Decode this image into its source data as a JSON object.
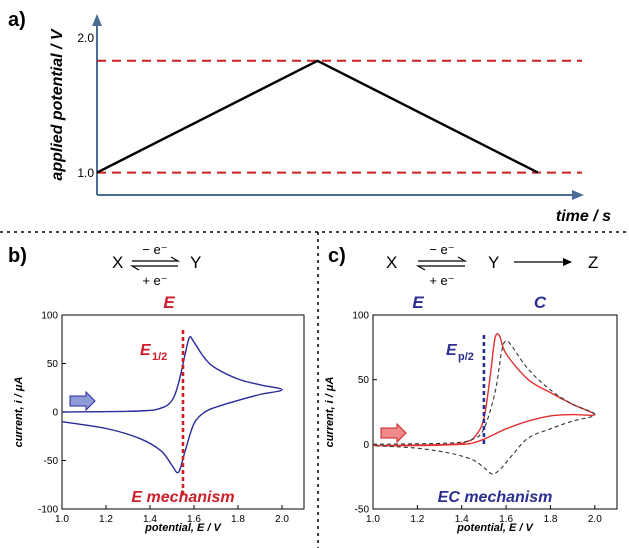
{
  "colors": {
    "axis_blue": "#4a6d96",
    "ramp_black": "#000000",
    "dash_red": "#cc2020",
    "cv_blue": "#2a2a9a",
    "cv_red": "#e03030",
    "dash_gray": "#333333",
    "mech_red": "#cc1f2a",
    "mech_blue": "#2b2f8e",
    "arrow_blue_fill": "#8e9bd8",
    "arrow_red_fill": "#f08a8a"
  },
  "panels": {
    "a": {
      "label": "a)"
    },
    "b": {
      "label": "b)",
      "scheme": {
        "left": "X",
        "right": "Y",
        "over": "− e⁻",
        "under": "+ e⁻"
      },
      "step_E": "E",
      "marker_main": "E",
      "marker_sub": "1/2",
      "mechanism": "E mechanism",
      "arrow_icon": "right-arrow-icon"
    },
    "c": {
      "label": "c)",
      "scheme": {
        "left": "X",
        "mid": "Y",
        "right": "Z",
        "over": "− e⁻",
        "under": "+ e⁻"
      },
      "step_E": "E",
      "step_C": "C",
      "marker_main": "E",
      "marker_sub": "p/2",
      "mechanism": "EC mechanism",
      "arrow_icon": "right-arrow-icon"
    }
  },
  "chart_data": [
    {
      "panel": "a",
      "type": "line",
      "ylabel": "applied potential / V",
      "xlabel": "time / s",
      "yticks": [
        "2.0",
        "1.0"
      ],
      "ylim": [
        0.8,
        2.4
      ],
      "xlim": [
        0,
        1.1
      ],
      "series": [
        {
          "values_x": [
            0,
            0.5,
            1.0
          ],
          "values_y": [
            1.0,
            2.0,
            1.0
          ]
        }
      ],
      "reference_lines_y": [
        2.0,
        1.0
      ],
      "grid": false
    },
    {
      "panel": "b",
      "type": "line",
      "xlabel": "potential, E / V",
      "ylabel": "current, i / μA",
      "xlim": [
        1.0,
        2.1
      ],
      "ylim": [
        -100,
        100
      ],
      "xticks": [
        "1.0",
        "1.2",
        "1.4",
        "1.6",
        "1.8",
        "2.0"
      ],
      "yticks": [
        "100",
        "50",
        "0",
        "-50",
        "-100"
      ],
      "marker_x": 1.55,
      "series": [
        {
          "style": "solid",
          "forward": [
            [
              1.0,
              0
            ],
            [
              1.35,
              1
            ],
            [
              1.45,
              4
            ],
            [
              1.5,
              12
            ],
            [
              1.53,
              30
            ],
            [
              1.56,
              60
            ],
            [
              1.58,
              77
            ],
            [
              1.6,
              72
            ],
            [
              1.65,
              55
            ],
            [
              1.7,
              45
            ],
            [
              1.8,
              34
            ],
            [
              1.9,
              28
            ],
            [
              2.0,
              23
            ]
          ],
          "reverse": [
            [
              2.0,
              23
            ],
            [
              1.9,
              18
            ],
            [
              1.8,
              12
            ],
            [
              1.7,
              5
            ],
            [
              1.65,
              0
            ],
            [
              1.6,
              -12
            ],
            [
              1.56,
              -40
            ],
            [
              1.53,
              -62
            ],
            [
              1.5,
              -55
            ],
            [
              1.45,
              -40
            ],
            [
              1.35,
              -27
            ],
            [
              1.2,
              -17
            ],
            [
              1.0,
              -10
            ]
          ]
        }
      ],
      "grid": false
    },
    {
      "panel": "c",
      "type": "line",
      "xlabel": "potential, E / V",
      "ylabel": "current, i / μA",
      "xlim": [
        1.0,
        2.1
      ],
      "ylim": [
        -50,
        100
      ],
      "xticks": [
        "1.0",
        "1.2",
        "1.4",
        "1.6",
        "1.8",
        "2.0"
      ],
      "yticks": [
        "100",
        "50",
        "0",
        "-50"
      ],
      "marker_x": 1.5,
      "series": [
        {
          "style": "solid",
          "forward": [
            [
              1.0,
              -1
            ],
            [
              1.35,
              0
            ],
            [
              1.42,
              2
            ],
            [
              1.46,
              6
            ],
            [
              1.5,
              20
            ],
            [
              1.53,
              55
            ],
            [
              1.55,
              82
            ],
            [
              1.57,
              84
            ],
            [
              1.6,
              70
            ],
            [
              1.7,
              50
            ],
            [
              1.8,
              40
            ],
            [
              1.9,
              31
            ],
            [
              2.0,
              23
            ]
          ],
          "reverse": [
            [
              2.0,
              23
            ],
            [
              1.9,
              23
            ],
            [
              1.8,
              22
            ],
            [
              1.7,
              18
            ],
            [
              1.6,
              12
            ],
            [
              1.55,
              8
            ],
            [
              1.5,
              4
            ],
            [
              1.45,
              1
            ],
            [
              1.4,
              0
            ],
            [
              1.2,
              -1
            ],
            [
              1.0,
              -1
            ]
          ]
        },
        {
          "style": "dashed",
          "forward": [
            [
              1.0,
              0
            ],
            [
              1.35,
              1
            ],
            [
              1.45,
              4
            ],
            [
              1.5,
              12
            ],
            [
              1.55,
              40
            ],
            [
              1.58,
              72
            ],
            [
              1.6,
              80
            ],
            [
              1.63,
              75
            ],
            [
              1.7,
              58
            ],
            [
              1.8,
              42
            ],
            [
              1.9,
              31
            ],
            [
              2.0,
              23
            ]
          ],
          "reverse": [
            [
              2.0,
              23
            ],
            [
              1.9,
              18
            ],
            [
              1.8,
              12
            ],
            [
              1.7,
              5
            ],
            [
              1.63,
              -8
            ],
            [
              1.58,
              -18
            ],
            [
              1.54,
              -23
            ],
            [
              1.5,
              -18
            ],
            [
              1.45,
              -12
            ],
            [
              1.35,
              -7
            ],
            [
              1.2,
              -3
            ],
            [
              1.0,
              -1
            ]
          ]
        }
      ],
      "grid": false
    }
  ]
}
